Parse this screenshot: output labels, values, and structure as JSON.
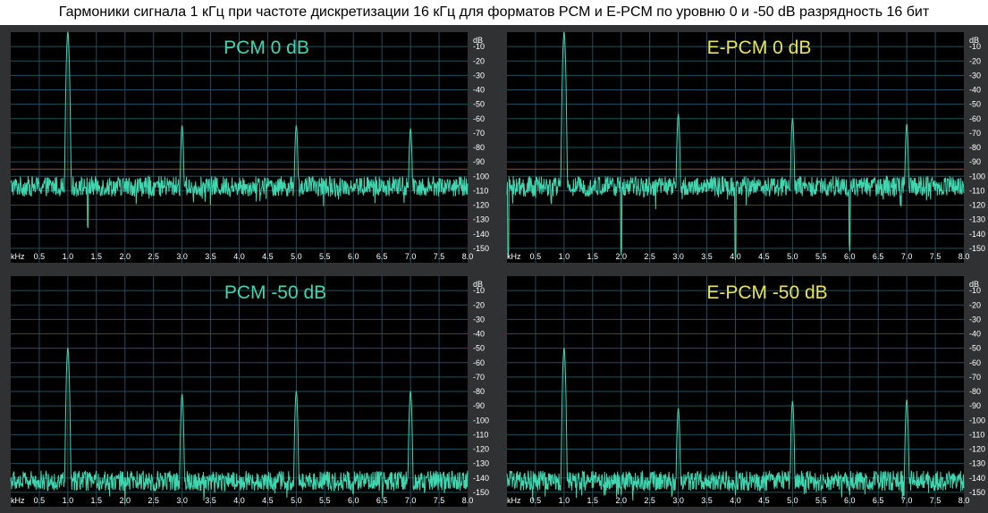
{
  "page": {
    "title": "Гармоники сигнала 1 кГц при частоте дискретизации 16 кГц для форматов PCM и E-PCM по уровню 0 и -50 dB разрядность 16 бит"
  },
  "colors": {
    "trace": "#3fd6b0",
    "title_pcm": "#3fd6b0",
    "title_epcm": "#e8e455",
    "reference_line": "#a04a2a",
    "grid": "#1f4f5e",
    "plot_bg": "#000000",
    "frame_bg": "#2f3133",
    "tick_text": "#ffffff"
  },
  "axis_labels": {
    "x_unit": "kHz",
    "y_unit": "dB",
    "x_ticks": [
      "0.5",
      "1.0",
      "1.5",
      "2.0",
      "2.5",
      "3.0",
      "3.5",
      "4.0",
      "4.5",
      "5.0",
      "5.5",
      "6.0",
      "6.5",
      "7.0",
      "7.5",
      "8.0"
    ],
    "y_ticks": [
      "-10",
      "-20",
      "-30",
      "-40",
      "-50",
      "-60",
      "-70",
      "-80",
      "-90",
      "-100",
      "-110",
      "-120",
      "-130",
      "-140",
      "-150"
    ]
  },
  "chart_data": [
    {
      "type": "line",
      "title": "PCM 0 dB",
      "xlim": [
        0,
        8
      ],
      "ylim": [
        -160,
        0
      ],
      "reference_level": -95,
      "noise_floor": -107,
      "harmonics": [
        {
          "x": 1.0,
          "y": 0
        },
        {
          "x": 3.0,
          "y": -65
        },
        {
          "x": 5.0,
          "y": -65
        },
        {
          "x": 7.0,
          "y": -67
        }
      ],
      "dips": [
        {
          "x": 1.35,
          "y": -138
        }
      ]
    },
    {
      "type": "line",
      "title": "E-PCM 0 dB",
      "xlim": [
        0,
        8
      ],
      "ylim": [
        -160,
        0
      ],
      "reference_level": -95,
      "noise_floor": -107,
      "harmonics": [
        {
          "x": 1.0,
          "y": 0
        },
        {
          "x": 3.0,
          "y": -57
        },
        {
          "x": 5.0,
          "y": -60
        },
        {
          "x": 7.0,
          "y": -64
        }
      ],
      "dips": [
        {
          "x": 0.02,
          "y": -158
        },
        {
          "x": 2.0,
          "y": -155
        },
        {
          "x": 4.0,
          "y": -158
        },
        {
          "x": 6.0,
          "y": -152
        }
      ]
    },
    {
      "type": "line",
      "title": "PCM -50 dB",
      "xlim": [
        0,
        8
      ],
      "ylim": [
        -160,
        0
      ],
      "noise_floor": -142,
      "harmonics": [
        {
          "x": 1.0,
          "y": -50
        },
        {
          "x": 3.0,
          "y": -82
        },
        {
          "x": 5.0,
          "y": -80
        },
        {
          "x": 7.0,
          "y": -80
        }
      ],
      "dips": []
    },
    {
      "type": "line",
      "title": "E-PCM -50 dB",
      "xlim": [
        0,
        8
      ],
      "ylim": [
        -160,
        0
      ],
      "noise_floor": -142,
      "harmonics": [
        {
          "x": 1.0,
          "y": -50
        },
        {
          "x": 3.0,
          "y": -92
        },
        {
          "x": 5.0,
          "y": -87
        },
        {
          "x": 7.0,
          "y": -86
        }
      ],
      "dips": [
        {
          "x": 2.0,
          "y": -152
        },
        {
          "x": 4.0,
          "y": -152
        },
        {
          "x": 6.0,
          "y": -152
        }
      ]
    }
  ]
}
